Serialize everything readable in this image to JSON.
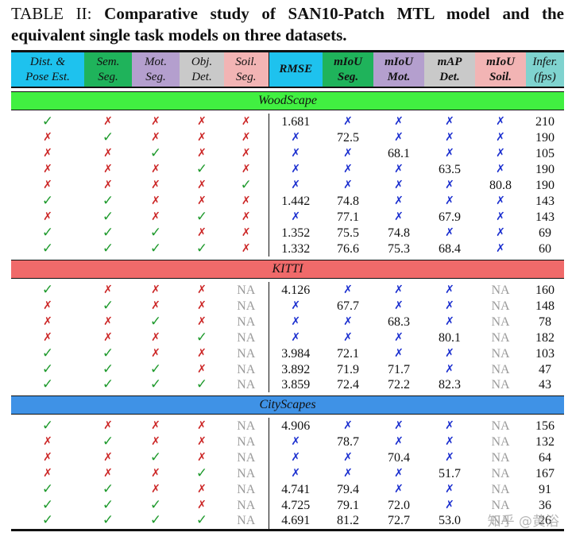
{
  "caption": {
    "label": "TABLE II: ",
    "text": "Comparative study of SAN10-Patch MTL model and the equivalent single task models on three datasets."
  },
  "columns": [
    {
      "l1": "Dist. &",
      "l2": "Pose Est.",
      "bg": "#1ec2ee",
      "metric": false
    },
    {
      "l1": "Sem.",
      "l2": "Seg.",
      "bg": "#1fb35b",
      "metric": false
    },
    {
      "l1": "Mot.",
      "l2": "Seg.",
      "bg": "#b49fce",
      "metric": false
    },
    {
      "l1": "Obj.",
      "l2": "Det.",
      "bg": "#c9c9c9",
      "metric": false
    },
    {
      "l1": "Soil.",
      "l2": "Seg.",
      "bg": "#f2b4b4",
      "metric": false
    },
    {
      "l1": "RMSE",
      "l2": "",
      "bg": "#1ec2ee",
      "metric": true
    },
    {
      "l1": "mIoU",
      "l2": "Seg.",
      "bg": "#1fb35b",
      "metric": true
    },
    {
      "l1": "mIoU",
      "l2": "Mot.",
      "bg": "#b49fce",
      "metric": true
    },
    {
      "l1": "mAP",
      "l2": "Det.",
      "bg": "#c9c9c9",
      "metric": true
    },
    {
      "l1": "mIoU",
      "l2": "Soil.",
      "bg": "#f2b4b4",
      "metric": true
    },
    {
      "l1": "Infer.",
      "l2": "(fps)",
      "bg": "#7fd3cf",
      "metric": false
    }
  ],
  "sections": [
    {
      "name": "WoodScape",
      "cls": "ws",
      "rows": [
        [
          "C",
          "X",
          "X",
          "X",
          "X",
          "1.681",
          "B",
          "B",
          "B",
          "B",
          "210"
        ],
        [
          "X",
          "C",
          "X",
          "X",
          "X",
          "B",
          "72.5",
          "B",
          "B",
          "B",
          "190"
        ],
        [
          "X",
          "X",
          "C",
          "X",
          "X",
          "B",
          "B",
          "68.1",
          "B",
          "B",
          "105"
        ],
        [
          "X",
          "X",
          "X",
          "C",
          "X",
          "B",
          "B",
          "B",
          "63.5",
          "B",
          "190"
        ],
        [
          "X",
          "X",
          "X",
          "X",
          "C",
          "B",
          "B",
          "B",
          "B",
          "80.8",
          "190"
        ],
        [
          "C",
          "C",
          "X",
          "X",
          "X",
          "1.442",
          "74.8",
          "B",
          "B",
          "B",
          "143"
        ],
        [
          "X",
          "C",
          "X",
          "C",
          "X",
          "B",
          "77.1",
          "B",
          "67.9",
          "B",
          "143"
        ],
        [
          "C",
          "C",
          "C",
          "X",
          "X",
          "1.352",
          "75.5",
          "74.8",
          "B",
          "B",
          "69"
        ],
        [
          "C",
          "C",
          "C",
          "C",
          "X",
          "1.332",
          "76.6",
          "75.3",
          "68.4",
          "B",
          "60"
        ]
      ]
    },
    {
      "name": "KITTI",
      "cls": "kt",
      "rows": [
        [
          "C",
          "X",
          "X",
          "X",
          "NA",
          "4.126",
          "B",
          "B",
          "B",
          "NA",
          "160"
        ],
        [
          "X",
          "C",
          "X",
          "X",
          "NA",
          "B",
          "67.7",
          "B",
          "B",
          "NA",
          "148"
        ],
        [
          "X",
          "X",
          "C",
          "X",
          "NA",
          "B",
          "B",
          "68.3",
          "B",
          "NA",
          "78"
        ],
        [
          "X",
          "X",
          "X",
          "C",
          "NA",
          "B",
          "B",
          "B",
          "80.1",
          "NA",
          "182"
        ],
        [
          "C",
          "C",
          "X",
          "X",
          "NA",
          "3.984",
          "72.1",
          "B",
          "B",
          "NA",
          "103"
        ],
        [
          "C",
          "C",
          "C",
          "X",
          "NA",
          "3.892",
          "71.9",
          "71.7",
          "B",
          "NA",
          "47"
        ],
        [
          "C",
          "C",
          "C",
          "C",
          "NA",
          "3.859",
          "72.4",
          "72.2",
          "82.3",
          "NA",
          "43"
        ]
      ]
    },
    {
      "name": "CityScapes",
      "cls": "cs",
      "rows": [
        [
          "C",
          "X",
          "X",
          "X",
          "NA",
          "4.906",
          "B",
          "B",
          "B",
          "NA",
          "156"
        ],
        [
          "X",
          "C",
          "X",
          "X",
          "NA",
          "B",
          "78.7",
          "B",
          "B",
          "NA",
          "132"
        ],
        [
          "X",
          "X",
          "C",
          "X",
          "NA",
          "B",
          "B",
          "70.4",
          "B",
          "NA",
          "64"
        ],
        [
          "X",
          "X",
          "X",
          "C",
          "NA",
          "B",
          "B",
          "B",
          "51.7",
          "NA",
          "167"
        ],
        [
          "C",
          "C",
          "X",
          "X",
          "NA",
          "4.741",
          "79.4",
          "B",
          "B",
          "NA",
          "91"
        ],
        [
          "C",
          "C",
          "C",
          "X",
          "NA",
          "4.725",
          "79.1",
          "72.0",
          "B",
          "NA",
          "36"
        ],
        [
          "C",
          "C",
          "C",
          "C",
          "NA",
          "4.691",
          "81.2",
          "72.7",
          "53.0",
          "NA",
          "26"
        ]
      ]
    }
  ],
  "symbols": {
    "check": "✓",
    "cross": "✗",
    "na": "NA"
  },
  "watermark": "知乎 @黄浴"
}
